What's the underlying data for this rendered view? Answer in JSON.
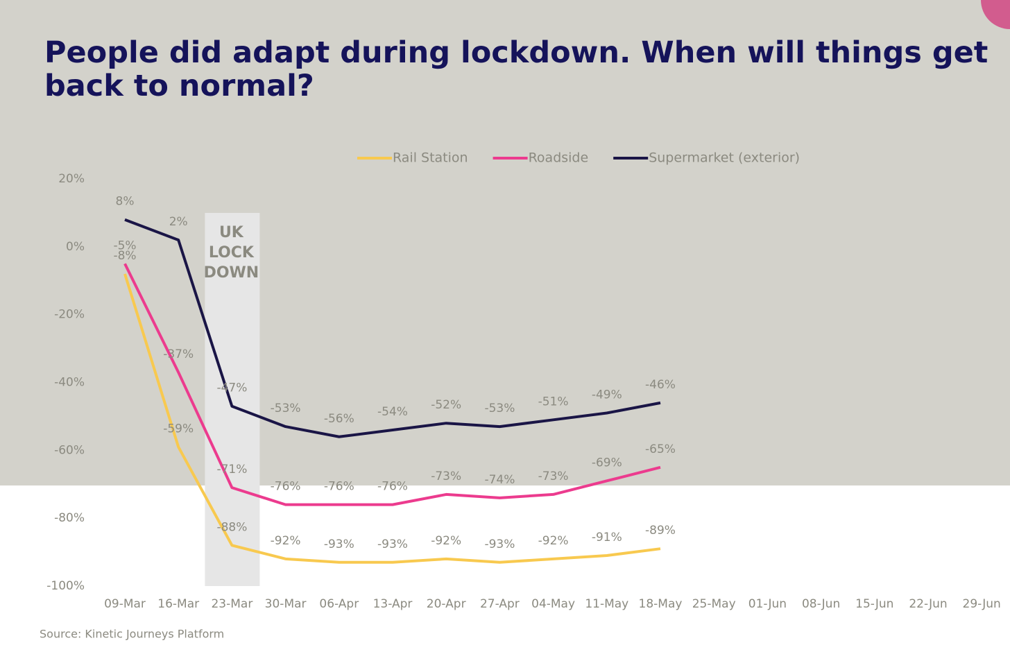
{
  "chart_data": {
    "type": "line",
    "title": "People did adapt during lockdown. When will things get back to normal?",
    "source": "Source: Kinetic Journeys Platform",
    "annotation_lines": [
      "UK",
      "LOCK",
      "DOWN"
    ],
    "categories": [
      "09-Mar",
      "16-Mar",
      "23-Mar",
      "30-Mar",
      "06-Apr",
      "13-Apr",
      "20-Apr",
      "27-Apr",
      "04-May",
      "11-May",
      "18-May",
      "25-May",
      "01-Jun",
      "08-Jun",
      "15-Jun",
      "22-Jun",
      "29-Jun"
    ],
    "ylim": [
      -100,
      20
    ],
    "yticks": [
      {
        "value": 20,
        "label": "20%"
      },
      {
        "value": 0,
        "label": "0%"
      },
      {
        "value": -20,
        "label": "-20%"
      },
      {
        "value": -40,
        "label": "-40%"
      },
      {
        "value": -60,
        "label": "-60%"
      },
      {
        "value": -80,
        "label": "-80%"
      },
      {
        "value": -100,
        "label": "-100%"
      }
    ],
    "legend": "top",
    "series": [
      {
        "name": "Rail Station",
        "color": "#f8c94f",
        "values": [
          -8,
          -59,
          -88,
          -92,
          -93,
          -93,
          -92,
          -93,
          -92,
          -91,
          -89,
          null,
          null,
          null,
          null,
          null,
          null
        ],
        "value_labels": [
          "-8%",
          "-59%",
          "-88%",
          "-92%",
          "-93%",
          "-93%",
          "-92%",
          "-93%",
          "-92%",
          "-91%",
          "-89%",
          null,
          null,
          null,
          null,
          null,
          null
        ]
      },
      {
        "name": "Roadside",
        "color": "#ec3b8e",
        "values": [
          -5,
          -37,
          -71,
          -76,
          -76,
          -76,
          -73,
          -74,
          -73,
          -69,
          -65,
          null,
          null,
          null,
          null,
          null,
          null
        ],
        "value_labels": [
          "-5%",
          "-37%",
          "-71%",
          "-76%",
          "-76%",
          "-76%",
          "-73%",
          "-74%",
          "-73%",
          "-69%",
          "-65%",
          null,
          null,
          null,
          null,
          null,
          null
        ]
      },
      {
        "name": "Supermarket (exterior)",
        "color": "#1a1546",
        "values": [
          8,
          2,
          -47,
          -53,
          -56,
          -54,
          -52,
          -53,
          -51,
          -49,
          -46,
          null,
          null,
          null,
          null,
          null,
          null
        ],
        "value_labels": [
          "8%",
          "2%",
          "-47%",
          "-53%",
          "-56%",
          "-54%",
          "-52%",
          "-53%",
          "-51%",
          "-49%",
          "-46%",
          null,
          null,
          null,
          null,
          null,
          null
        ]
      }
    ]
  }
}
